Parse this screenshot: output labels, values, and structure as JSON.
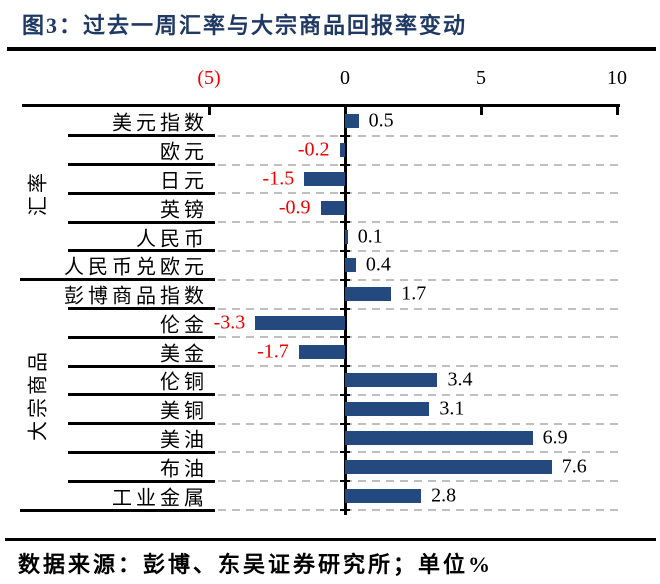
{
  "title": "图3：过去一周汇率与大宗商品回报率变动",
  "source_note": "数据来源：彭博、东吴证券研究所；单位%",
  "colors": {
    "title": "#1F3864",
    "bar": "#24497E",
    "negative_label": "#EE0000",
    "positive_label": "#000000",
    "axis": "#000000",
    "gridline": "#BFBFBF"
  },
  "chart_data": {
    "type": "bar",
    "orientation": "horizontal",
    "title": "过去一周汇率与大宗商品回报率变动",
    "unit": "%",
    "xlim": [
      -5,
      10
    ],
    "x_ticks": [
      {
        "value": -5,
        "label": "(5)",
        "negative_style": true
      },
      {
        "value": 0,
        "label": "0",
        "negative_style": false
      },
      {
        "value": 5,
        "label": "5",
        "negative_style": false
      },
      {
        "value": 10,
        "label": "10",
        "negative_style": false
      }
    ],
    "grid": "dashed-row-separators",
    "groups": [
      {
        "name": "汇率",
        "items": [
          {
            "label": "美元指数",
            "value": 0.5
          },
          {
            "label": "欧元",
            "value": -0.2
          },
          {
            "label": "日元",
            "value": -1.5
          },
          {
            "label": "英镑",
            "value": -0.9
          },
          {
            "label": "人民币",
            "value": 0.1
          },
          {
            "label": "人民币兑欧元",
            "value": 0.4
          }
        ]
      },
      {
        "name": "大宗商品",
        "items": [
          {
            "label": "彭博商品指数",
            "value": 1.7
          },
          {
            "label": "伦金",
            "value": -3.3
          },
          {
            "label": "美金",
            "value": -1.7
          },
          {
            "label": "伦铜",
            "value": 3.4
          },
          {
            "label": "美铜",
            "value": 3.1
          },
          {
            "label": "美油",
            "value": 6.9
          },
          {
            "label": "布油",
            "value": 7.6
          },
          {
            "label": "工业金属",
            "value": 2.8
          }
        ]
      }
    ]
  }
}
